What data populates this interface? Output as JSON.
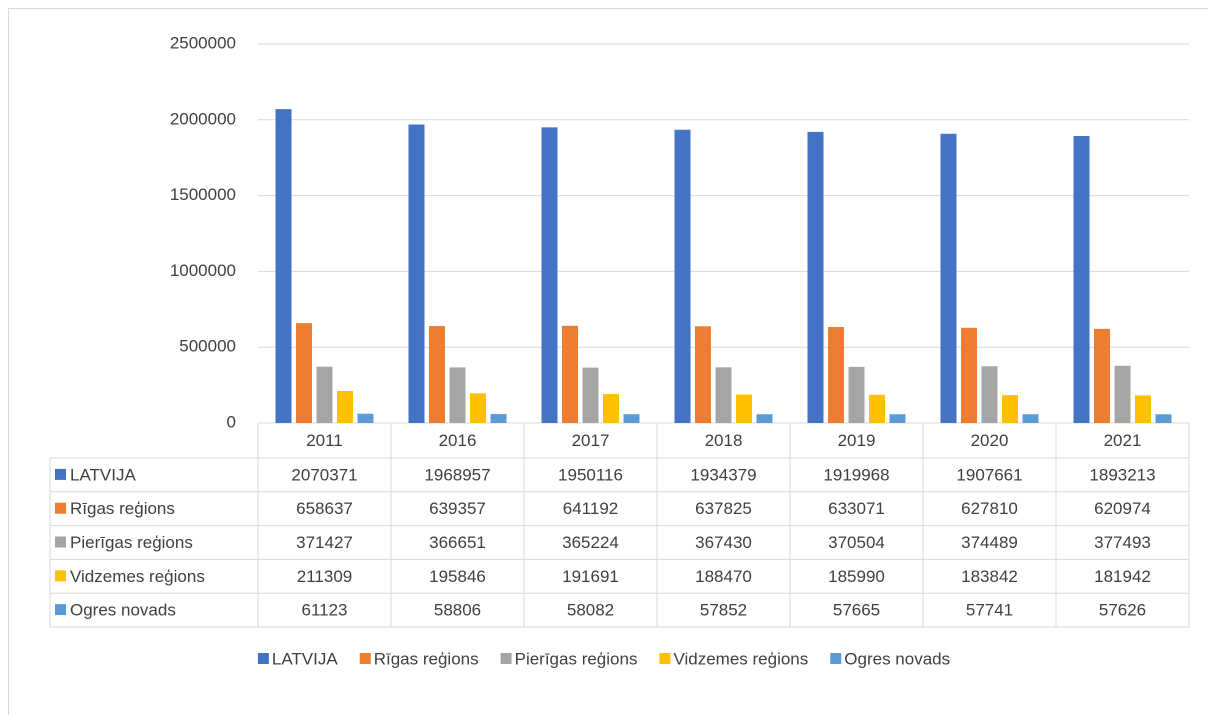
{
  "chart_data": {
    "type": "bar",
    "categories": [
      "2011",
      "2016",
      "2017",
      "2018",
      "2019",
      "2020",
      "2021"
    ],
    "series": [
      {
        "name": "LATVIJA",
        "color": "#4472c4",
        "values": [
          2070371,
          1968957,
          1950116,
          1934379,
          1919968,
          1907661,
          1893213
        ]
      },
      {
        "name": "Rīgas reģions",
        "color": "#ed7d31",
        "values": [
          658637,
          639357,
          641192,
          637825,
          633071,
          627810,
          620974
        ]
      },
      {
        "name": "Pierīgas reģions",
        "color": "#a5a5a5",
        "values": [
          371427,
          366651,
          365224,
          367430,
          370504,
          374489,
          377493
        ]
      },
      {
        "name": "Vidzemes reģions",
        "color": "#ffc000",
        "values": [
          211309,
          195846,
          191691,
          188470,
          185990,
          183842,
          181942
        ]
      },
      {
        "name": "Ogres novads",
        "color": "#5b9bd5",
        "values": [
          61123,
          58806,
          58082,
          57852,
          57665,
          57741,
          57626
        ]
      }
    ],
    "ylim": [
      0,
      2500000
    ],
    "yticks": [
      0,
      500000,
      1000000,
      1500000,
      2000000,
      2500000
    ],
    "grid": true,
    "data_table": true,
    "legend": "bottom"
  }
}
